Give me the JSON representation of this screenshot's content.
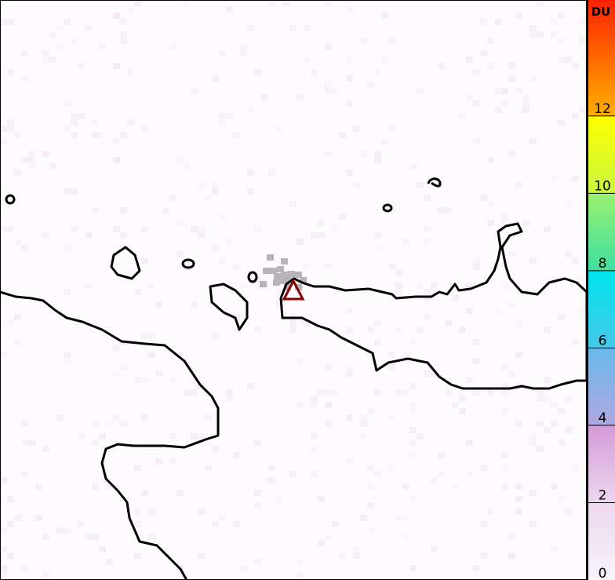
{
  "colorbar": {
    "unit": "DU",
    "min": 0,
    "max": 15,
    "ticks": [
      "0",
      "2",
      "4",
      "6",
      "8",
      "10",
      "12"
    ],
    "tick_values": [
      0,
      2,
      4,
      6,
      8,
      10,
      12
    ],
    "color_stops": [
      {
        "value": 0,
        "color": "#f8f4fa"
      },
      {
        "value": 2,
        "color": "#ecd8ee"
      },
      {
        "value": 4,
        "color": "#d49ad8"
      },
      {
        "value": 4.01,
        "color": "#b0a8e0"
      },
      {
        "value": 6,
        "color": "#6ab8ea"
      },
      {
        "value": 6.01,
        "color": "#46c8ea"
      },
      {
        "value": 8,
        "color": "#00e4ec"
      },
      {
        "value": 8.01,
        "color": "#40e0a0"
      },
      {
        "value": 10,
        "color": "#98f070"
      },
      {
        "value": 10.01,
        "color": "#c8f840"
      },
      {
        "value": 12,
        "color": "#ffff00"
      },
      {
        "value": 12.01,
        "color": "#ffb000"
      },
      {
        "value": 15,
        "color": "#ff2000"
      }
    ]
  },
  "map": {
    "volcano_marker_color": "#8b0000",
    "coastline_color": "#000000",
    "low_signal_pixel_color": "#b8b4bc"
  }
}
